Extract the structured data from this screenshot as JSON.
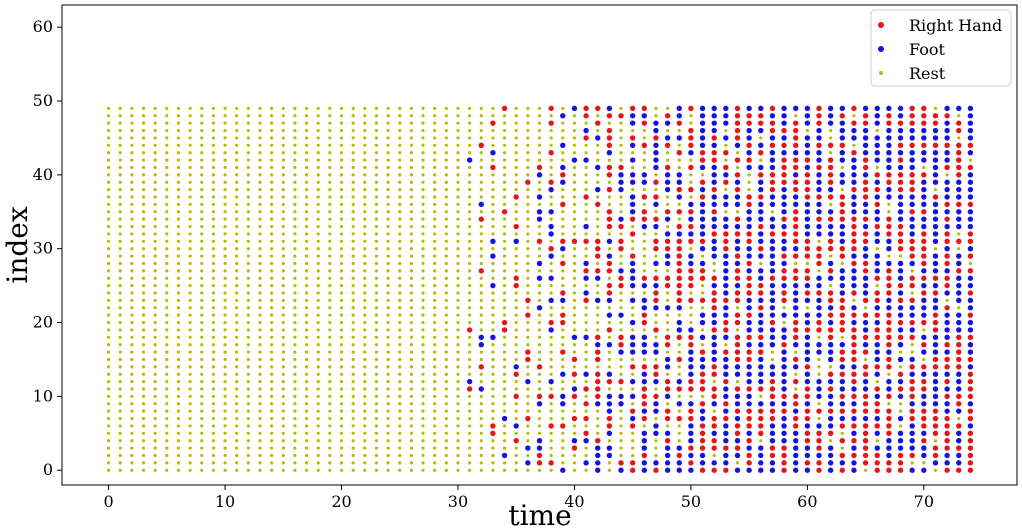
{
  "chart_data": {
    "type": "scatter",
    "title": "",
    "xlabel": "time",
    "ylabel": "index",
    "xlim": [
      -4,
      78
    ],
    "ylim": [
      -2,
      63
    ],
    "xticks": [
      0,
      10,
      20,
      30,
      40,
      50,
      60,
      70
    ],
    "yticks": [
      0,
      10,
      20,
      30,
      40,
      50,
      60
    ],
    "grid": false,
    "legend_position": "top-right",
    "time_range": [
      0,
      74
    ],
    "index_range": [
      0,
      49
    ],
    "series": [
      {
        "name": "Right Hand",
        "color": "#e81416"
      },
      {
        "name": "Foot",
        "color": "#1414e0"
      },
      {
        "name": "Rest",
        "color": "#b5bd00"
      }
    ],
    "transition": {
      "rest_only_until": 30,
      "full_mixing_from": 52,
      "right_hand_share": 0.42,
      "foot_share": 0.46
    }
  }
}
